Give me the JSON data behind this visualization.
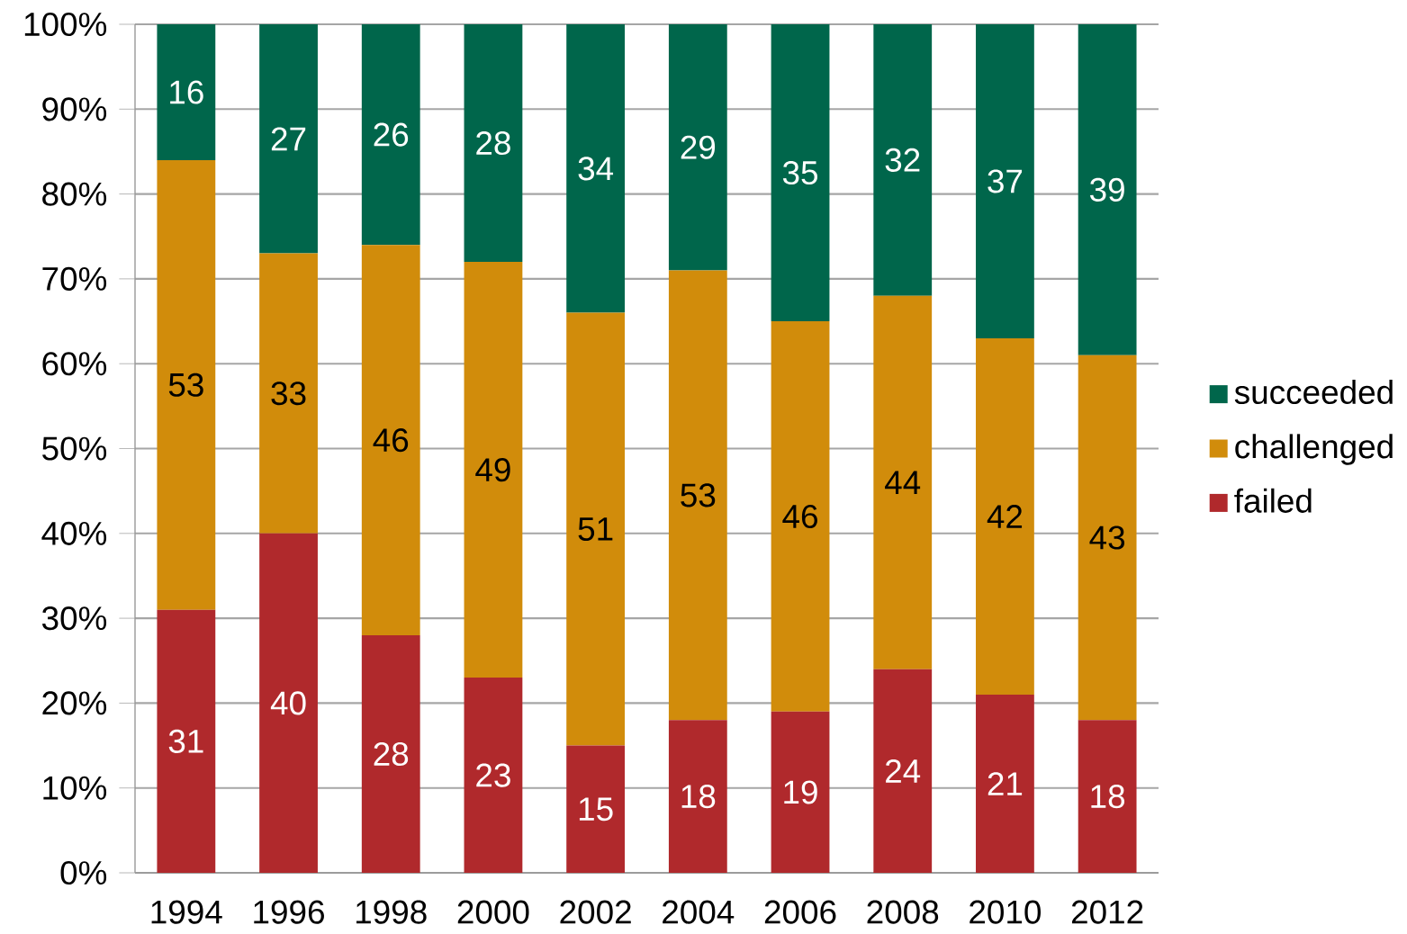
{
  "chart_data": {
    "type": "bar",
    "stacked": true,
    "categories": [
      "1994",
      "1996",
      "1998",
      "2000",
      "2002",
      "2004",
      "2006",
      "2008",
      "2010",
      "2012"
    ],
    "series": [
      {
        "name": "failed",
        "color": "#b0292c",
        "values": [
          31,
          40,
          28,
          23,
          15,
          18,
          19,
          24,
          21,
          18
        ]
      },
      {
        "name": "challenged",
        "color": "#d18c0b",
        "values": [
          53,
          33,
          46,
          49,
          51,
          53,
          46,
          44,
          42,
          43
        ]
      },
      {
        "name": "succeeded",
        "color": "#00664b",
        "values": [
          16,
          27,
          26,
          28,
          34,
          29,
          35,
          32,
          37,
          39
        ]
      }
    ],
    "ylim": [
      0,
      100
    ],
    "yticks": [
      {
        "value": 0,
        "label": "0%"
      },
      {
        "value": 10,
        "label": "10%"
      },
      {
        "value": 20,
        "label": "20%"
      },
      {
        "value": 30,
        "label": "30%"
      },
      {
        "value": 40,
        "label": "40%"
      },
      {
        "value": 50,
        "label": "50%"
      },
      {
        "value": 60,
        "label": "60%"
      },
      {
        "value": 70,
        "label": "70%"
      },
      {
        "value": 80,
        "label": "80%"
      },
      {
        "value": 90,
        "label": "90%"
      },
      {
        "value": 100,
        "label": "100%"
      }
    ],
    "grid": "y",
    "legend": "right",
    "data_labels": true
  }
}
